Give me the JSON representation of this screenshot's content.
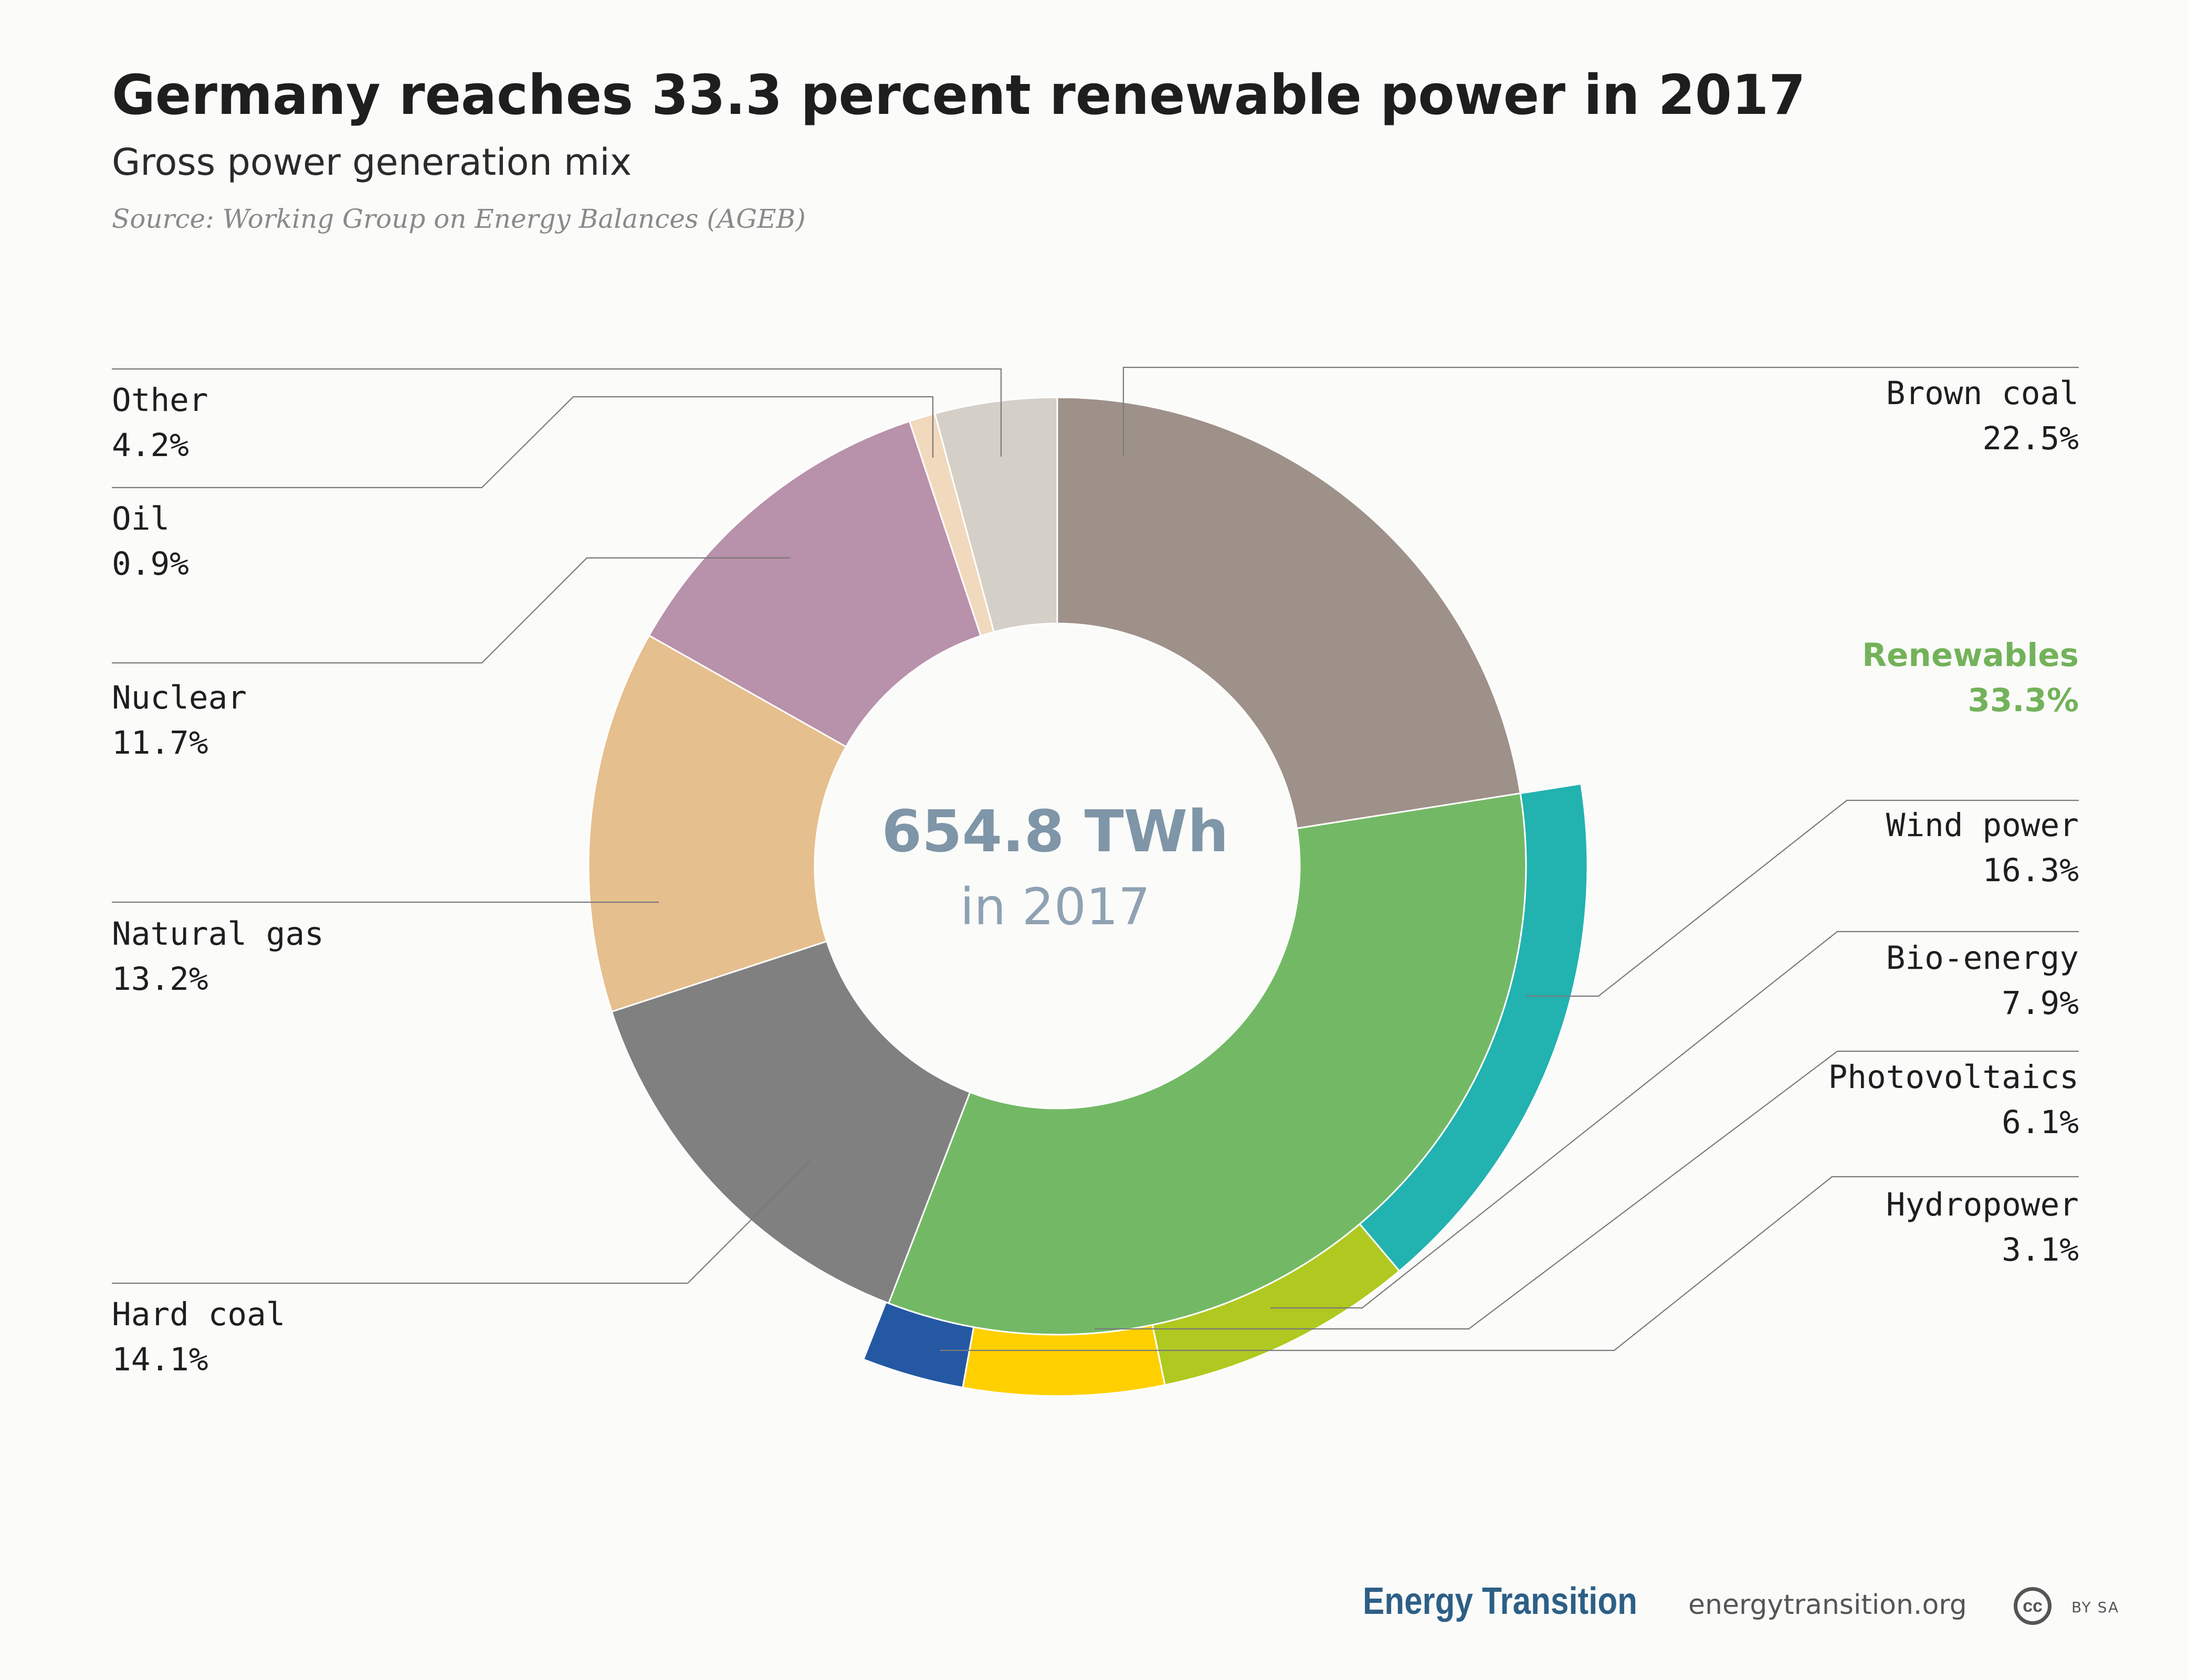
{
  "header": {
    "title": "Germany reaches 33.3 percent renewable power in 2017",
    "subtitle": "Gross power generation mix",
    "source": "Source: Working Group on Energy Balances (AGEB)"
  },
  "center": {
    "value": "654.8 TWh",
    "sub": "in 2017"
  },
  "labels": {
    "other": {
      "name": "Other",
      "value": "4.2%"
    },
    "oil": {
      "name": "Oil",
      "value": "0.9%"
    },
    "nuclear": {
      "name": "Nuclear",
      "value": "11.7%"
    },
    "natural_gas": {
      "name": "Natural gas",
      "value": "13.2%"
    },
    "hard_coal": {
      "name": "Hard coal",
      "value": "14.1%"
    },
    "brown_coal": {
      "name": "Brown coal",
      "value": "22.5%"
    },
    "renewables": {
      "name": "Renewables",
      "value": "33.3%"
    },
    "wind": {
      "name": "Wind power",
      "value": "16.3%"
    },
    "bio": {
      "name": "Bio-energy",
      "value": "7.9%"
    },
    "pv": {
      "name": "Photovoltaics",
      "value": "6.1%"
    },
    "hydro": {
      "name": "Hydropower",
      "value": "3.1%"
    }
  },
  "footer": {
    "brand": "Energy Transition",
    "url": "energytransition.org",
    "cc_symbol": "cc",
    "license": "BY SA"
  },
  "chart_data": {
    "type": "pie",
    "total": "654.8 TWh",
    "year": "2017",
    "slices": [
      {
        "key": "brown_coal",
        "name": "Brown coal",
        "value": 22.5,
        "color": "#9e9189"
      },
      {
        "key": "renewables",
        "name": "Renewables",
        "value": 33.3,
        "color": "#73b965"
      },
      {
        "key": "hard_coal",
        "name": "Hard coal",
        "value": 14.1,
        "color": "#808080"
      },
      {
        "key": "natural_gas",
        "name": "Natural gas",
        "value": 13.2,
        "color": "#e6bf8e"
      },
      {
        "key": "nuclear",
        "name": "Nuclear",
        "value": 11.7,
        "color": "#b891aa"
      },
      {
        "key": "oil",
        "name": "Oil",
        "value": 0.9,
        "color": "#f1d9bd"
      },
      {
        "key": "other",
        "name": "Other",
        "value": 4.2,
        "color": "#d4cfc7"
      }
    ],
    "renewables_breakdown": [
      {
        "key": "wind",
        "name": "Wind power",
        "value": 16.3,
        "color": "#22b2b0"
      },
      {
        "key": "bio",
        "name": "Bio-energy",
        "value": 7.9,
        "color": "#b0c920"
      },
      {
        "key": "pv",
        "name": "Photovoltaics",
        "value": 6.1,
        "color": "#ffd000"
      },
      {
        "key": "hydro",
        "name": "Hydropower",
        "value": 3.1,
        "color": "#2458a3"
      }
    ]
  }
}
